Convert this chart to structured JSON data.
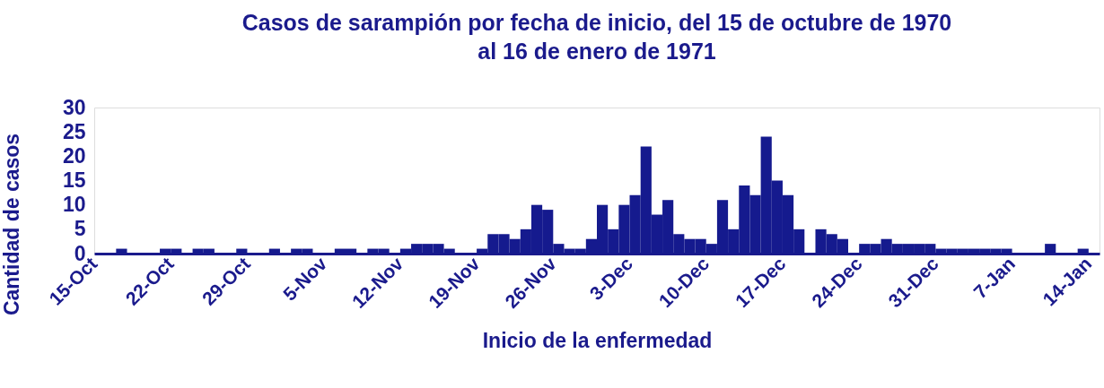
{
  "chart_data": {
    "type": "histogram",
    "title": [
      "Casos de sarampión por fecha de inicio, del 15 de octubre de 1970",
      "al 16 de enero de 1971"
    ],
    "xlabel": "Inicio de la enfermedad",
    "ylabel": "Cantidad de casos",
    "color": "#151a8e",
    "bins": [
      "1970-10-15",
      "1970-10-16",
      "1970-10-17",
      "1970-10-18",
      "1970-10-19",
      "1970-10-20",
      "1970-10-21",
      "1970-10-22",
      "1970-10-23",
      "1970-10-24",
      "1970-10-25",
      "1970-10-26",
      "1970-10-27",
      "1970-10-28",
      "1970-10-29",
      "1970-10-30",
      "1970-10-31",
      "1970-11-01",
      "1970-11-02",
      "1970-11-03",
      "1970-11-04",
      "1970-11-05",
      "1970-11-06",
      "1970-11-07",
      "1970-11-08",
      "1970-11-09",
      "1970-11-10",
      "1970-11-11",
      "1970-11-12",
      "1970-11-13",
      "1970-11-14",
      "1970-11-15",
      "1970-11-16",
      "1970-11-17",
      "1970-11-18",
      "1970-11-19",
      "1970-11-20",
      "1970-11-21",
      "1970-11-22",
      "1970-11-23",
      "1970-11-24",
      "1970-11-25",
      "1970-11-26",
      "1970-11-27",
      "1970-11-28",
      "1970-11-29",
      "1970-11-30",
      "1970-12-01",
      "1970-12-02",
      "1970-12-03",
      "1970-12-04",
      "1970-12-05",
      "1970-12-06",
      "1970-12-07",
      "1970-12-08",
      "1970-12-09",
      "1970-12-10",
      "1970-12-11",
      "1970-12-12",
      "1970-12-13",
      "1970-12-14",
      "1970-12-15",
      "1970-12-16",
      "1970-12-17",
      "1970-12-18",
      "1970-12-19",
      "1970-12-20",
      "1970-12-21",
      "1970-12-22",
      "1970-12-23",
      "1970-12-24",
      "1970-12-25",
      "1970-12-26",
      "1970-12-27",
      "1970-12-28",
      "1970-12-29",
      "1970-12-30",
      "1970-12-31",
      "1971-01-01",
      "1971-01-02",
      "1971-01-03",
      "1971-01-04",
      "1971-01-05",
      "1971-01-06",
      "1971-01-07",
      "1971-01-08",
      "1971-01-09",
      "1971-01-10",
      "1971-01-11",
      "1971-01-12",
      "1971-01-13",
      "1971-01-14",
      "1971-01-15"
    ],
    "values": [
      0,
      0,
      1,
      0,
      0,
      0,
      1,
      1,
      0,
      1,
      1,
      0,
      0,
      1,
      0,
      0,
      1,
      0,
      1,
      1,
      0,
      0,
      1,
      1,
      0,
      1,
      1,
      0,
      1,
      2,
      2,
      2,
      1,
      0,
      0,
      1,
      4,
      4,
      3,
      5,
      10,
      9,
      2,
      1,
      1,
      3,
      10,
      5,
      10,
      12,
      22,
      8,
      11,
      4,
      3,
      3,
      2,
      11,
      5,
      14,
      12,
      24,
      15,
      12,
      5,
      0,
      5,
      4,
      3,
      0,
      2,
      2,
      3,
      2,
      2,
      2,
      2,
      1,
      1,
      1,
      1,
      1,
      1,
      1,
      0,
      0,
      0,
      2,
      0,
      0,
      1,
      0
    ],
    "xlim": [
      "1970-10-15",
      "1971-01-15"
    ],
    "xticks": [
      {
        "value": "1970-10-15",
        "label": "15-Oct"
      },
      {
        "value": "1970-10-22",
        "label": "22-Oct"
      },
      {
        "value": "1970-10-29",
        "label": "29-Oct"
      },
      {
        "value": "1970-11-05",
        "label": "5-Nov"
      },
      {
        "value": "1970-11-12",
        "label": "12-Nov"
      },
      {
        "value": "1970-11-19",
        "label": "19-Nov"
      },
      {
        "value": "1970-11-26",
        "label": "26-Nov"
      },
      {
        "value": "1970-12-03",
        "label": "3-Dec"
      },
      {
        "value": "1970-12-10",
        "label": "10-Dec"
      },
      {
        "value": "1970-12-17",
        "label": "17-Dec"
      },
      {
        "value": "1970-12-24",
        "label": "24-Dec"
      },
      {
        "value": "1970-12-31",
        "label": "31-Dec"
      },
      {
        "value": "1971-01-07",
        "label": "7-Jan"
      },
      {
        "value": "1971-01-14",
        "label": "14-Jan"
      }
    ],
    "ylim": [
      0,
      30
    ],
    "yticks": [
      0,
      5,
      10,
      15,
      20,
      25,
      30
    ],
    "grid": false
  }
}
